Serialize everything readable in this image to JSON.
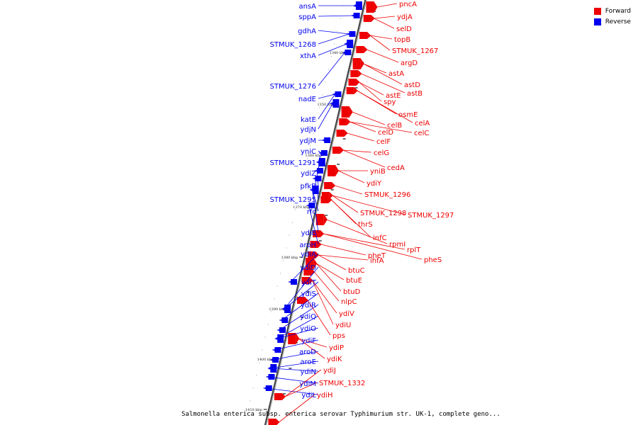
{
  "legend": [
    {
      "label": "Forward",
      "color": "#ee0000"
    },
    {
      "label": "Reverse",
      "color": "#0000ee"
    }
  ],
  "caption": "Salmonella enterica subsp. enterica serovar Typhimurium str. UK-1, complete geno...",
  "colors": {
    "forward": "#ee0000",
    "reverse": "#0000ee",
    "backbone": "#888888"
  },
  "tick_labels": [
    "1340 kbp",
    "1350 kbp",
    "1360 kbp",
    "1370 kbp",
    "1380 kbp",
    "1390 kbp",
    "1400 kbp",
    "1410 kbp"
  ],
  "reverse_genes": [
    "ansA",
    "sppA",
    "gdhA",
    "STMUK_1268",
    "xthA",
    "STMUK_1276",
    "nadE",
    "katE",
    "ydjN",
    "ydjM",
    "yniC",
    "STMUK_1291",
    "ydiZ",
    "pfkB",
    "STMUK_1295",
    "rfc",
    "ydiE",
    "aroH",
    "ydiA",
    "ydiD",
    "ydiT",
    "ydiS",
    "ydiR",
    "ydiQ",
    "ydiO",
    "ydiF",
    "aroD",
    "aroE",
    "ydiN",
    "ydiM",
    "ydiL"
  ],
  "forward_genes": [
    "pncA",
    "ydjA",
    "selD",
    "topB",
    "STMUK_1267",
    "argD",
    "astA",
    "astD",
    "astB",
    "astE",
    "spy",
    "osmE",
    "celA",
    "celB",
    "celC",
    "celD",
    "celF",
    "celG",
    "cedA",
    "yniB",
    "ydiY",
    "STMUK_1296",
    "STMUK_1298",
    "STMUK_1297",
    "thrS",
    "infC",
    "rpmI",
    "rplT",
    "pheS",
    "pheT",
    "ihfA",
    "btuC",
    "btuE",
    "btuD",
    "nlpC",
    "ydiV",
    "ydiU",
    "pps",
    "ydiP",
    "ydiK",
    "ydiJ",
    "STMUK_1332",
    "ydiH"
  ]
}
